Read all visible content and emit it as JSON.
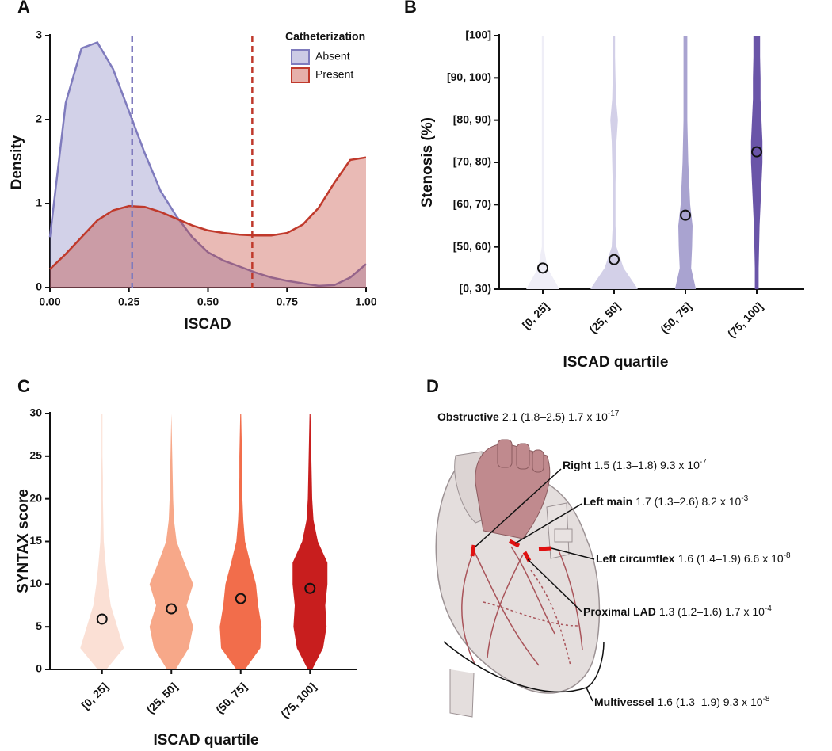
{
  "chart_data": [
    {
      "panel": "A",
      "type": "density",
      "x_label": "ISCAD",
      "y_label": "Density",
      "legend_title": "Catheterization",
      "legend": "upper-right",
      "x": [
        0,
        0.05,
        0.1,
        0.15,
        0.2,
        0.25,
        0.3,
        0.35,
        0.4,
        0.45,
        0.5,
        0.55,
        0.6,
        0.65,
        0.7,
        0.75,
        0.8,
        0.85,
        0.9,
        0.95,
        1
      ],
      "xlim": [
        0,
        1
      ],
      "xticks": [
        {
          "value": 0,
          "label": "0.00"
        },
        0.25,
        {
          "value": 0.5,
          "label": "0.50"
        },
        0.75,
        {
          "value": 1,
          "label": "1.00"
        }
      ],
      "ylim": [
        0,
        3
      ],
      "yticks": [
        0,
        1,
        2,
        3
      ],
      "series": [
        {
          "name": "Absent",
          "color": "#7f7bbd",
          "marker_x": 0.26,
          "values": [
            0.6,
            2.2,
            2.85,
            2.92,
            2.6,
            2.1,
            1.6,
            1.15,
            0.85,
            0.6,
            0.42,
            0.32,
            0.25,
            0.18,
            0.12,
            0.08,
            0.05,
            0.02,
            0.03,
            0.12,
            0.28
          ]
        },
        {
          "name": "Present",
          "color": "#c0392b",
          "marker_x": 0.64,
          "values": [
            0.22,
            0.4,
            0.6,
            0.8,
            0.92,
            0.97,
            0.96,
            0.9,
            0.82,
            0.74,
            0.68,
            0.65,
            0.63,
            0.62,
            0.62,
            0.65,
            0.75,
            0.95,
            1.25,
            1.52,
            1.55
          ]
        }
      ]
    },
    {
      "panel": "B",
      "type": "violin",
      "x_label": "ISCAD quartile",
      "y_label": "Stenosis (%)",
      "categories": [
        "[0, 25]",
        "(25, 50]",
        "(50, 75]",
        "(75, 100]"
      ],
      "y_categories": [
        "[0, 30)",
        "[50, 60)",
        "[60, 70)",
        "[70, 80)",
        "[80, 90)",
        "[90, 100)",
        "[100]"
      ],
      "ylim": [
        0,
        6
      ],
      "violin_y": [
        0,
        0.5,
        1,
        1.5,
        2,
        2.5,
        3,
        3.5,
        4,
        4.5,
        5,
        5.5,
        6
      ],
      "colors": [
        "#efeef7",
        "#d3d0e8",
        "#a9a3d0",
        "#6a55a8"
      ],
      "widths": [
        [
          0.35,
          0.1,
          0.02,
          0.02,
          0.02,
          0.02,
          0.02,
          0.02,
          0.02,
          0.02,
          0.02,
          0.02,
          0.02
        ],
        [
          0.5,
          0.2,
          0.05,
          0.03,
          0.03,
          0.03,
          0.04,
          0.05,
          0.08,
          0.04,
          0.03,
          0.02,
          0.02
        ],
        [
          0.22,
          0.12,
          0.14,
          0.15,
          0.1,
          0.08,
          0.06,
          0.05,
          0.04,
          0.04,
          0.04,
          0.04,
          0.04
        ],
        [
          0.04,
          0.04,
          0.05,
          0.06,
          0.08,
          0.1,
          0.12,
          0.12,
          0.1,
          0.08,
          0.08,
          0.07,
          0.07
        ]
      ],
      "values": [
        0.5,
        0.7,
        1.75,
        3.25
      ]
    },
    {
      "panel": "C",
      "type": "violin",
      "x_label": "ISCAD quartile",
      "y_label": "SYNTAX score",
      "categories": [
        "[0, 25]",
        "(25, 50]",
        "(50, 75]",
        "(75, 100]"
      ],
      "ylim": [
        0,
        30
      ],
      "yticks": [
        0,
        5,
        10,
        15,
        20,
        25,
        30
      ],
      "violin_y": [
        0,
        2.5,
        5,
        7.5,
        10,
        12.5,
        15,
        17.5,
        20,
        22.5,
        25,
        27.5,
        30
      ],
      "colors": [
        "#fbe0d5",
        "#f7a889",
        "#f26d4b",
        "#c81e1e"
      ],
      "widths": [
        [
          0.1,
          0.5,
          0.35,
          0.2,
          0.13,
          0.08,
          0.04,
          0.03,
          0.02,
          0.02,
          0.01,
          0.01,
          0.01
        ],
        [
          0.1,
          0.4,
          0.5,
          0.35,
          0.5,
          0.3,
          0.12,
          0.06,
          0.04,
          0.03,
          0.02,
          0.01,
          0
        ],
        [
          0.1,
          0.45,
          0.48,
          0.4,
          0.35,
          0.22,
          0.1,
          0.06,
          0.04,
          0.03,
          0.03,
          0.02,
          0.01
        ],
        [
          0.05,
          0.3,
          0.38,
          0.35,
          0.4,
          0.4,
          0.18,
          0.08,
          0.05,
          0.04,
          0.03,
          0.02,
          0.01
        ]
      ],
      "values": [
        5.9,
        7.1,
        8.3,
        9.5
      ]
    }
  ],
  "diagram": {
    "panel": "D",
    "labels": [
      {
        "name": "Obstructive",
        "stats": "2.1 (1.8–2.5) 1.7 x 10",
        "exponent": "-17"
      },
      {
        "name": "Right",
        "stats": "1.5 (1.3–1.8) 9.3 x 10",
        "exponent": "-7"
      },
      {
        "name": "Left main",
        "stats": "1.7 (1.3–2.6) 8.2 x 10",
        "exponent": "-3"
      },
      {
        "name": "Left circumflex",
        "stats": "1.6 (1.4–1.9) 6.6 x 10",
        "exponent": "-8"
      },
      {
        "name": "Proximal LAD",
        "stats": "1.3 (1.2–1.6) 1.7 x 10",
        "exponent": "-4"
      },
      {
        "name": "Multivessel",
        "stats": "1.6 (1.3–1.9) 9.3 x 10",
        "exponent": "-8"
      }
    ]
  }
}
